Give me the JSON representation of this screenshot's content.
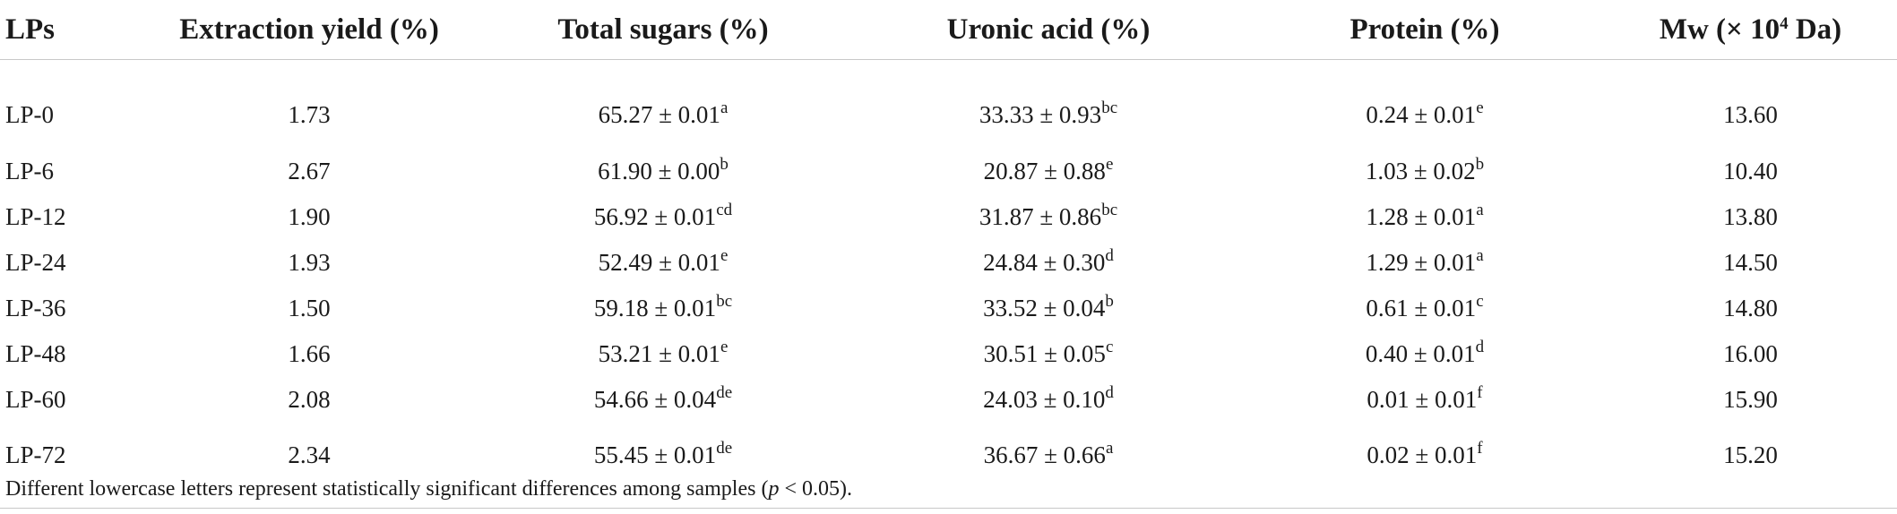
{
  "table": {
    "headers": {
      "lps": "LPs",
      "yield": "Extraction yield (%)",
      "sugars": "Total sugars (%)",
      "uronic": "Uronic acid (%)",
      "protein": "Protein (%)",
      "mw_prefix": "Mw (× 10",
      "mw_sup": "4",
      "mw_suffix": " Da)"
    },
    "rows": [
      {
        "lp": "LP-0",
        "yield": "1.73",
        "sugars": "65.27 ± 0.01",
        "sugars_sup": "a",
        "uronic": "33.33 ± 0.93",
        "uronic_sup": "bc",
        "protein": "0.24 ± 0.01",
        "protein_sup": "e",
        "mw": "13.60"
      },
      {
        "lp": "LP-6",
        "yield": "2.67",
        "sugars": "61.90 ± 0.00",
        "sugars_sup": "b",
        "uronic": "20.87 ± 0.88",
        "uronic_sup": "e",
        "protein": "1.03 ± 0.02",
        "protein_sup": "b",
        "mw": "10.40"
      },
      {
        "lp": "LP-12",
        "yield": "1.90",
        "sugars": "56.92 ± 0.01",
        "sugars_sup": "cd",
        "uronic": "31.87 ± 0.86",
        "uronic_sup": "bc",
        "protein": "1.28 ± 0.01",
        "protein_sup": "a",
        "mw": "13.80"
      },
      {
        "lp": "LP-24",
        "yield": "1.93",
        "sugars": "52.49 ± 0.01",
        "sugars_sup": "e",
        "uronic": "24.84 ± 0.30",
        "uronic_sup": "d",
        "protein": "1.29 ± 0.01",
        "protein_sup": "a",
        "mw": "14.50"
      },
      {
        "lp": "LP-36",
        "yield": "1.50",
        "sugars": "59.18 ± 0.01",
        "sugars_sup": "bc",
        "uronic": "33.52 ± 0.04",
        "uronic_sup": "b",
        "protein": "0.61 ± 0.01",
        "protein_sup": "c",
        "mw": "14.80"
      },
      {
        "lp": "LP-48",
        "yield": "1.66",
        "sugars": "53.21 ± 0.01",
        "sugars_sup": "e",
        "uronic": "30.51 ± 0.05",
        "uronic_sup": "c",
        "protein": "0.40 ± 0.01",
        "protein_sup": "d",
        "mw": "16.00"
      },
      {
        "lp": "LP-60",
        "yield": "2.08",
        "sugars": "54.66 ± 0.04",
        "sugars_sup": "de",
        "uronic": "24.03 ± 0.10",
        "uronic_sup": "d",
        "protein": "0.01 ± 0.01",
        "protein_sup": "f",
        "mw": "15.90"
      },
      {
        "lp": "LP-72",
        "yield": "2.34",
        "sugars": "55.45 ± 0.01",
        "sugars_sup": "de",
        "uronic": "36.67 ± 0.66",
        "uronic_sup": "a",
        "protein": "0.02 ± 0.01",
        "protein_sup": "f",
        "mw": "15.20"
      }
    ]
  },
  "footnote": {
    "before": "Different lowercase letters represent statistically significant differences among samples (",
    "p": "p",
    "after": " < 0.05)."
  }
}
